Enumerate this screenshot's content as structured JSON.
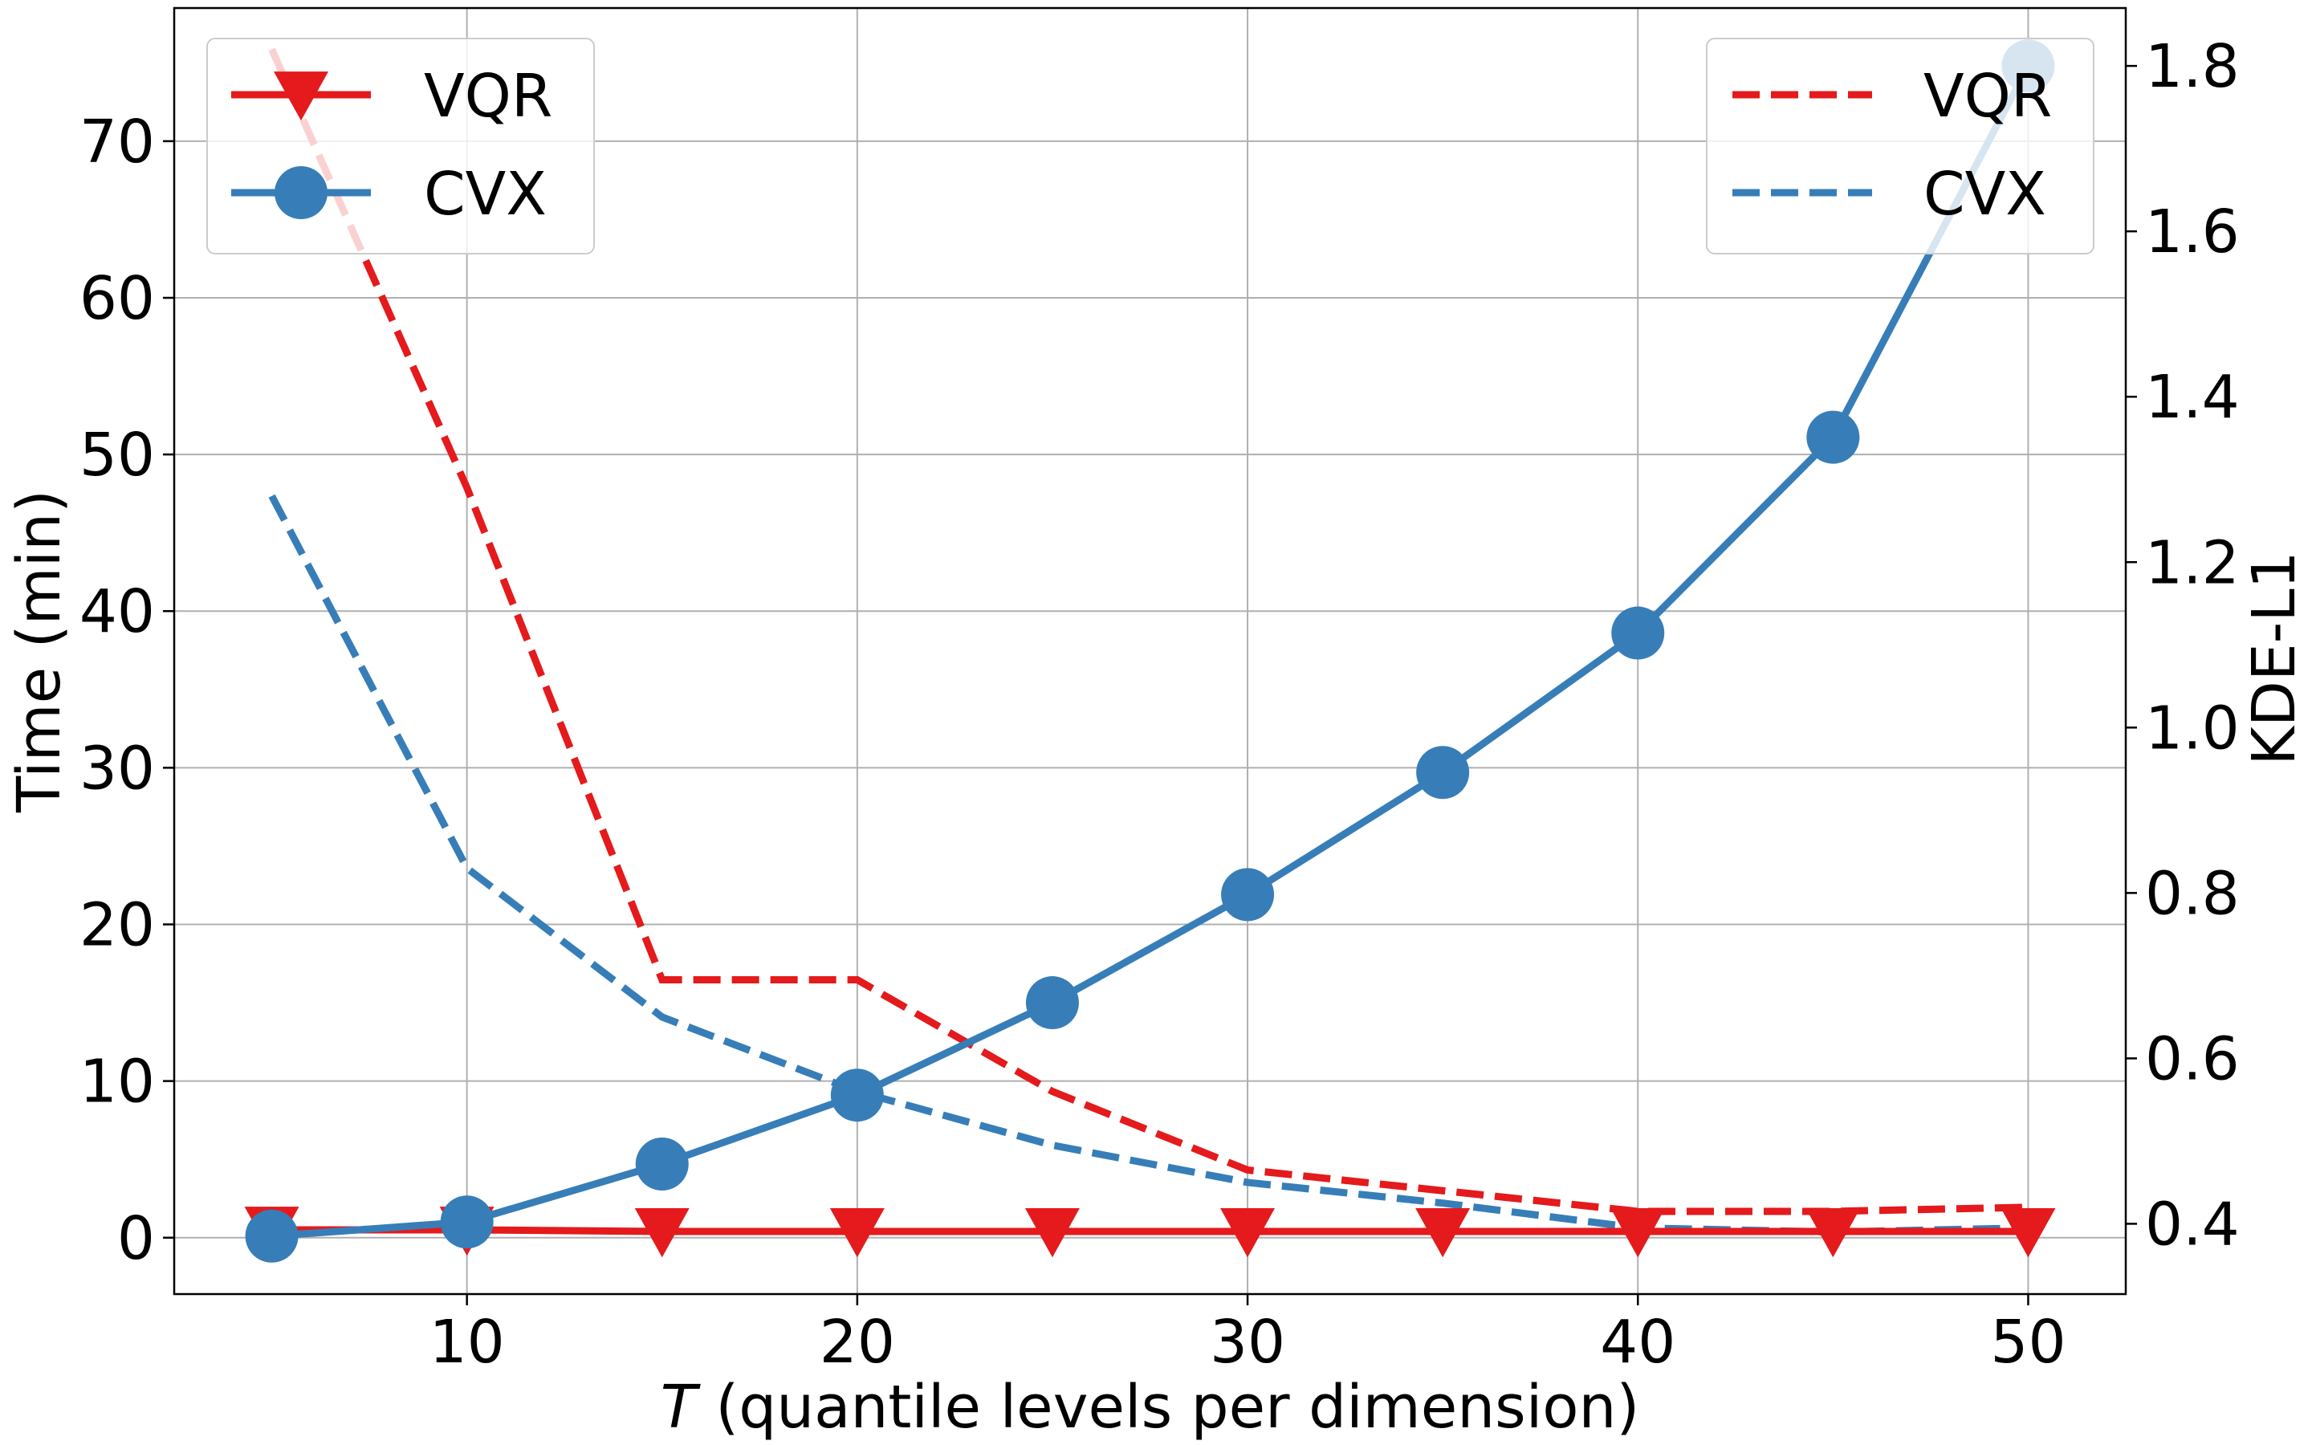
{
  "chart_data": {
    "type": "line",
    "xlabel_italic": "T",
    "xlabel_rest": " (quantile levels per dimension)",
    "ylabel": "Time (min)",
    "y2label": "KDE-L1",
    "xlim": [
      2.5,
      52.5
    ],
    "ylim": [
      -3.6,
      78.5
    ],
    "y2lim": [
      0.315,
      1.87
    ],
    "xticks": [
      "10",
      "20",
      "30",
      "40",
      "50"
    ],
    "xtick_values": [
      10,
      20,
      30,
      40,
      50
    ],
    "yticks": [
      "0",
      "10",
      "20",
      "30",
      "40",
      "50",
      "60",
      "70"
    ],
    "ytick_values": [
      0,
      10,
      20,
      30,
      40,
      50,
      60,
      70
    ],
    "y2ticks": [
      "0.4",
      "0.6",
      "0.8",
      "1.0",
      "1.2",
      "1.4",
      "1.6",
      "1.8"
    ],
    "y2tick_values": [
      0.4,
      0.6,
      0.8,
      1.0,
      1.2,
      1.4,
      1.6,
      1.8
    ],
    "x": [
      5,
      10,
      15,
      20,
      25,
      30,
      35,
      40,
      45,
      50
    ],
    "time_series": [
      {
        "name": "VQR",
        "color": "#e41a1c",
        "marker": "triangle-down",
        "values": [
          0.5,
          0.5,
          0.4,
          0.4,
          0.4,
          0.4,
          0.4,
          0.4,
          0.4,
          0.4
        ]
      },
      {
        "name": "CVX",
        "color": "#377eb8",
        "marker": "circle",
        "values": [
          0.1,
          1.0,
          4.7,
          9.1,
          15.0,
          21.9,
          29.7,
          38.6,
          51.1,
          74.8
        ]
      }
    ],
    "kde_series": [
      {
        "name": "VQR",
        "color": "#e41a1c",
        "values": [
          1.82,
          1.29,
          0.695,
          0.695,
          0.56,
          0.465,
          0.44,
          0.415,
          0.415,
          0.42
        ]
      },
      {
        "name": "CVX",
        "color": "#377eb8",
        "values": [
          1.28,
          0.83,
          0.65,
          0.56,
          0.495,
          0.45,
          0.425,
          0.395,
          0.39,
          0.395
        ]
      }
    ],
    "legend_left": {
      "position": "top-left",
      "entries": [
        "VQR",
        "CVX"
      ]
    },
    "legend_right": {
      "position": "top-right",
      "entries": [
        "VQR",
        "CVX"
      ]
    },
    "grid": true
  }
}
